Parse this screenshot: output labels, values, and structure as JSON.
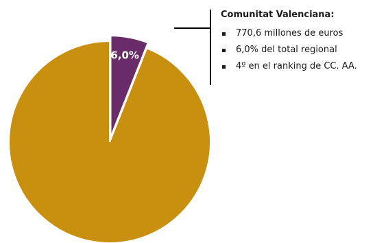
{
  "chart_data": {
    "type": "pie",
    "slices": [
      {
        "label": "Comunitat Valenciana",
        "value": 6.0,
        "color": "#6a2c69",
        "data_label": "6,0%",
        "exploded": true
      },
      {
        "label": "",
        "value": 94.0,
        "color": "#c9900f"
      }
    ],
    "start_angle_deg": 0
  },
  "annotation": {
    "title": "Comunitat Valenciana:",
    "bullets": [
      "770,6  millones de euros",
      "6,0% del total regional",
      "4º en el ranking de CC. AA."
    ]
  }
}
